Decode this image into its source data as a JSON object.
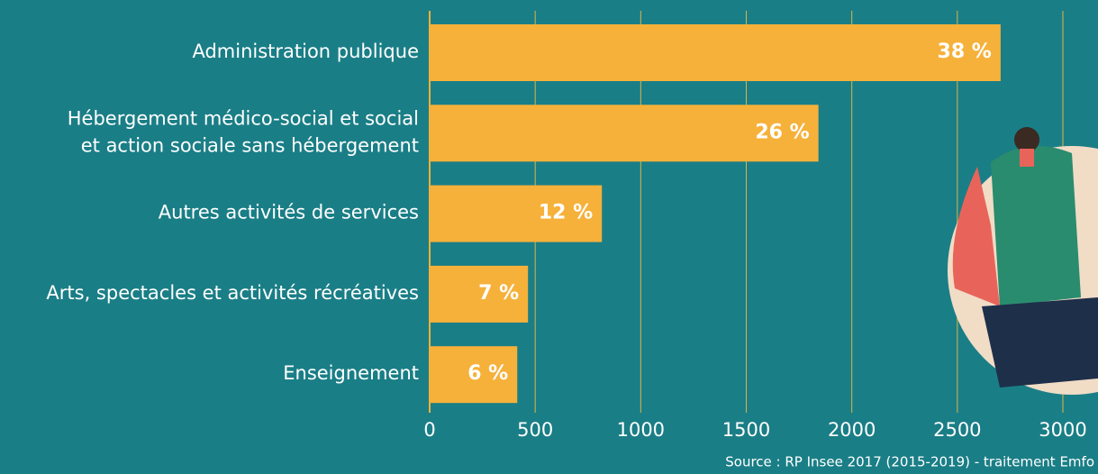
{
  "chart_data": {
    "type": "bar",
    "orientation": "horizontal",
    "categories": [
      [
        "Administration publique"
      ],
      [
        "Hébergement médico-social et social",
        "et action sociale sans hébergement"
      ],
      [
        "Autres activités de services"
      ],
      [
        "Arts, spectacles et activités récréatives"
      ],
      [
        "Enseignement"
      ]
    ],
    "values": [
      2705,
      1842,
      816,
      466,
      415
    ],
    "share_labels": [
      "38 %",
      "26 %",
      "12 %",
      "7 %",
      "6 %"
    ],
    "color": "#f6b13a",
    "xlim": [
      0,
      3000
    ],
    "xticks": [
      0,
      500,
      1000,
      1500,
      2000,
      2500,
      3000
    ],
    "grid": true,
    "source": "Source : RP Insee 2017 (2015-2019) - traitement Emfo"
  }
}
